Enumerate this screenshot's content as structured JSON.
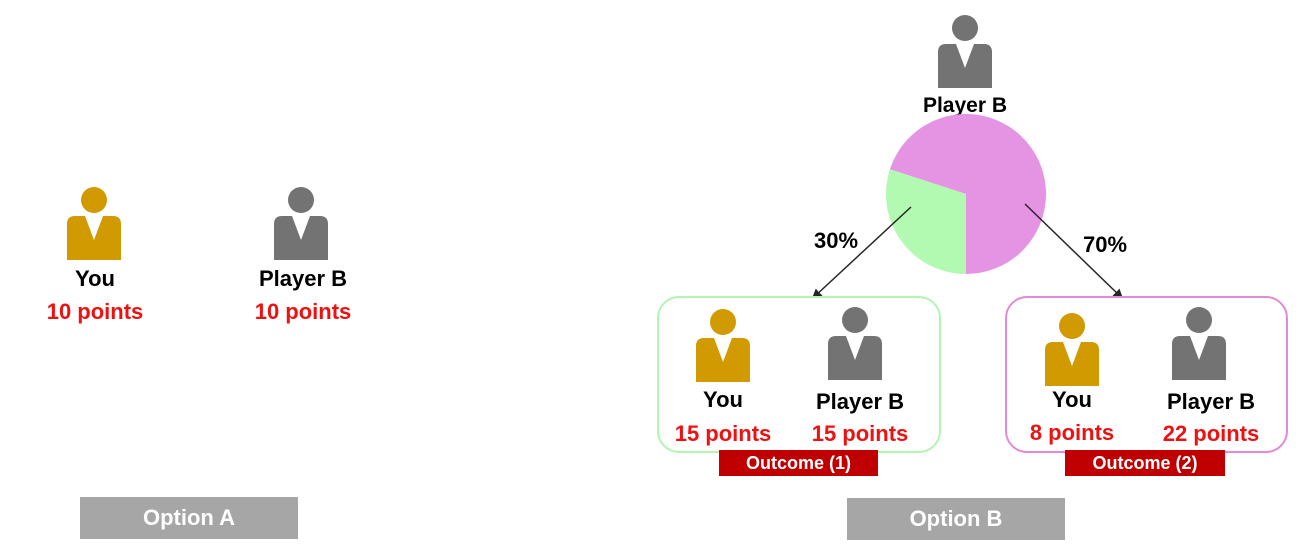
{
  "colors": {
    "you_icon": "#d09a00",
    "playerb_icon": "#737373",
    "points": "#ee1111",
    "option_button": "#a6a6a6",
    "outcome_label_bg": "#c00000",
    "outcome1_border": "#b2f5b0",
    "outcome2_border": "#e08ad8",
    "pie_green": "#b2f9b2",
    "pie_pink": "#e494e2"
  },
  "option_a": {
    "you": {
      "name": "You",
      "points": "10 points"
    },
    "player_b": {
      "name": "Player B",
      "points": "10 points"
    },
    "label": "Option A"
  },
  "option_b": {
    "chooser": {
      "name": "Player B"
    },
    "lottery": {
      "share_outcome_1": 0.3,
      "share_outcome_2": 0.7
    },
    "outcome_1": {
      "probability": "30%",
      "you": {
        "name": "You",
        "points": "15 points"
      },
      "player_b": {
        "name": "Player B",
        "points": "15 points"
      },
      "label": "Outcome (1)"
    },
    "outcome_2": {
      "probability": "70%",
      "you": {
        "name": "You",
        "points": "8 points"
      },
      "player_b": {
        "name": "Player B",
        "points": "22 points"
      },
      "label": "Outcome (2)"
    },
    "label": "Option B"
  }
}
